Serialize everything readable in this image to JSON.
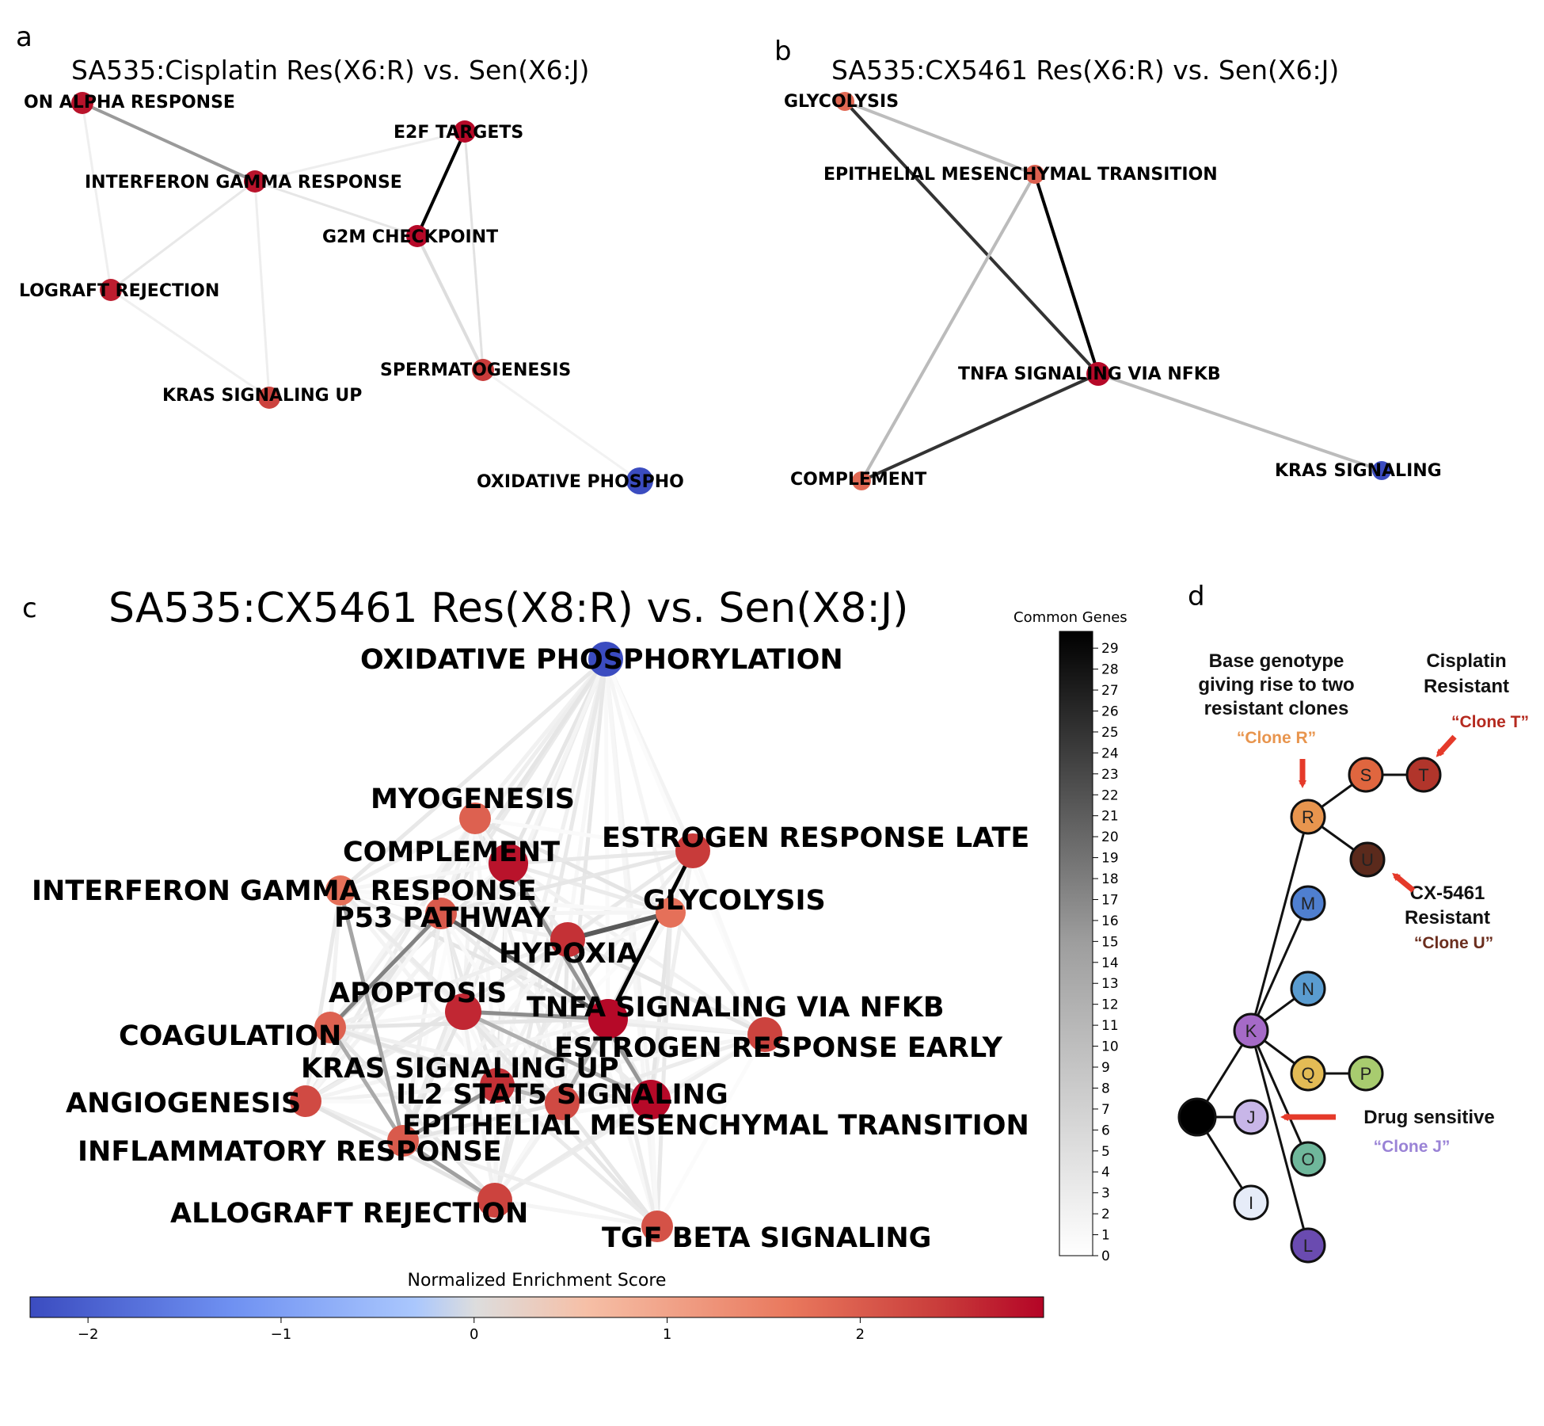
{
  "panels": {
    "a": {
      "letter": "a",
      "title": "SA535:Cisplatin Res(X6:R) vs. Sen(X6:J)",
      "nodes": [
        {
          "label": "ON ALPHA RESPONSE",
          "nes": 2.8
        },
        {
          "label": "E2F TARGETS",
          "nes": 2.9
        },
        {
          "label": "INTERFERON GAMMA RESPONSE",
          "nes": 2.8
        },
        {
          "label": "G2M CHECKPOINT",
          "nes": 2.9
        },
        {
          "label": "LOGRAFT REJECTION",
          "nes": 2.7
        },
        {
          "label": "SPERMATOGENESIS",
          "nes": 2.4
        },
        {
          "label": "KRAS SIGNALING UP",
          "nes": 2.3
        },
        {
          "label": "OXIDATIVE PHOSPHO",
          "nes": -2.3
        }
      ]
    },
    "b": {
      "letter": "b",
      "title": "SA535:CX5461 Res(X6:R) vs. Sen(X6:J)",
      "nodes": [
        {
          "label": "GLYCOLYSIS",
          "nes": 1.8
        },
        {
          "label": "EPITHELIAL MESENCHYMAL TRANSITION",
          "nes": 1.9
        },
        {
          "label": "TNFA SIGNALING VIA NFKB",
          "nes": 2.9
        },
        {
          "label": "COMPLEMENT",
          "nes": 1.8
        },
        {
          "label": "KRAS SIGNALING",
          "nes": -2.3
        }
      ]
    },
    "c": {
      "letter": "c",
      "title": "SA535:CX5461 Res(X8:R) vs. Sen(X8:J)",
      "nodes": [
        {
          "label": "OXIDATIVE PHOSPHORYLATION",
          "nes": -2.3
        },
        {
          "label": "MYOGENESIS",
          "nes": 1.9
        },
        {
          "label": "COMPLEMENT",
          "nes": 2.8
        },
        {
          "label": "ESTROGEN RESPONSE LATE",
          "nes": 2.4
        },
        {
          "label": "INTERFERON GAMMA RESPONSE",
          "nes": 1.7
        },
        {
          "label": "GLYCOLYSIS",
          "nes": 1.7
        },
        {
          "label": "P53 PATHWAY",
          "nes": 2.0
        },
        {
          "label": "HYPOXIA",
          "nes": 2.5
        },
        {
          "label": "APOPTOSIS",
          "nes": 2.6
        },
        {
          "label": "TNFA SIGNALING VIA NFKB",
          "nes": 2.9
        },
        {
          "label": "COAGULATION",
          "nes": 1.9
        },
        {
          "label": "ESTROGEN RESPONSE EARLY",
          "nes": 2.3
        },
        {
          "label": "KRAS SIGNALING UP",
          "nes": 2.5
        },
        {
          "label": "ANGIOGENESIS",
          "nes": 2.2
        },
        {
          "label": "IL2 STAT5 SIGNALING",
          "nes": 2.9
        },
        {
          "label": "EPITHELIAL MESENCHYMAL TRANSITION",
          "nes": 2.2
        },
        {
          "label": "INFLAMMATORY RESPONSE",
          "nes": 2.0
        },
        {
          "label": "ALLOGRAFT REJECTION",
          "nes": 2.3
        },
        {
          "label": "TGF BETA SIGNALING",
          "nes": 2.1
        }
      ],
      "colorbar_common_genes": {
        "label": "Common Genes",
        "ticks": [
          "0",
          "1",
          "2",
          "3",
          "4",
          "5",
          "6",
          "7",
          "8",
          "9",
          "10",
          "11",
          "12",
          "13",
          "14",
          "15",
          "16",
          "17",
          "18",
          "19",
          "20",
          "21",
          "22",
          "23",
          "24",
          "25",
          "26",
          "27",
          "28",
          "29"
        ]
      },
      "colorbar_nes": {
        "label": "Normalized Enrichment Score",
        "ticks": [
          "−2",
          "−1",
          "0",
          "1",
          "2"
        ],
        "range": [
          -2.3,
          2.95
        ]
      }
    },
    "d": {
      "letter": "d",
      "nodes": [
        {
          "label": "S",
          "color": "#e0663f"
        },
        {
          "label": "T",
          "color": "#b1352b"
        },
        {
          "label": "R",
          "color": "#e8954e"
        },
        {
          "label": "U",
          "color": "#5b2a1c"
        },
        {
          "label": "M",
          "color": "#4f7fd0"
        },
        {
          "label": "N",
          "color": "#5a9cd0"
        },
        {
          "label": "K",
          "color": "#a56ac7"
        },
        {
          "label": "Q",
          "color": "#e3bb55"
        },
        {
          "label": "P",
          "color": "#a8cc6f"
        },
        {
          "label": "J",
          "color": "#c8b6e8"
        },
        {
          "label": "O",
          "color": "#6fb79b"
        },
        {
          "label": "I",
          "color": "#e6ecf8"
        },
        {
          "label": "L",
          "color": "#6a4bb0"
        },
        {
          "label": "",
          "color": "#000000"
        }
      ],
      "annotations": {
        "base_1": "Base genotype",
        "base_2": "giving rise to two",
        "base_3": "resistant clones",
        "clone_r": "“Clone R”",
        "cis_1": "Cisplatin",
        "cis_2": "Resistant",
        "clone_t": "“Clone T”",
        "cx_1": "CX-5461",
        "cx_2": "Resistant",
        "clone_u": "“Clone U”",
        "sens": "Drug sensitive",
        "clone_j": "“Clone J”"
      },
      "colors": {
        "clone_r": "#e8954e",
        "clone_t": "#b52a1f",
        "clone_u": "#6b2e1e",
        "clone_j": "#9a83d6",
        "arrow": "#e53a2a"
      }
    }
  }
}
